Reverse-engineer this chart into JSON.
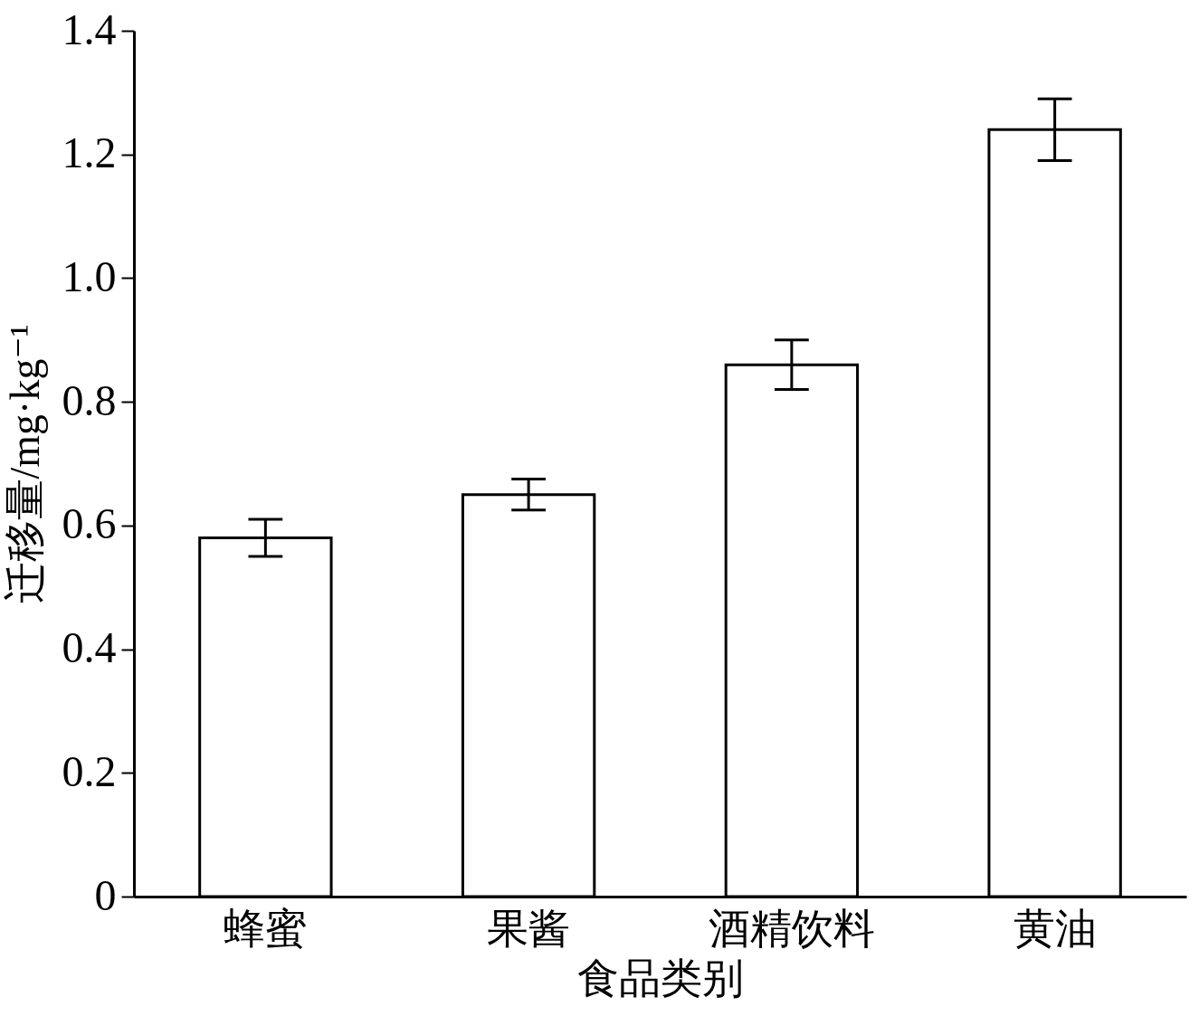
{
  "chart_data": {
    "type": "bar",
    "xlabel": "食品类别",
    "ylabel": "迁移量/mg·kg⁻¹",
    "categories": [
      "蜂蜜",
      "果酱",
      "酒精饮料",
      "黄油"
    ],
    "values": [
      0.58,
      0.65,
      0.86,
      1.24
    ],
    "errors": [
      0.03,
      0.025,
      0.04,
      0.05
    ],
    "color": "#ffffff",
    "ylim": [
      0,
      1.4
    ],
    "yticks": [
      0,
      0.2,
      0.4,
      0.6,
      0.8,
      {
        "value": 1,
        "label": "1.0"
      },
      1.2,
      1.4
    ],
    "grid": false
  }
}
